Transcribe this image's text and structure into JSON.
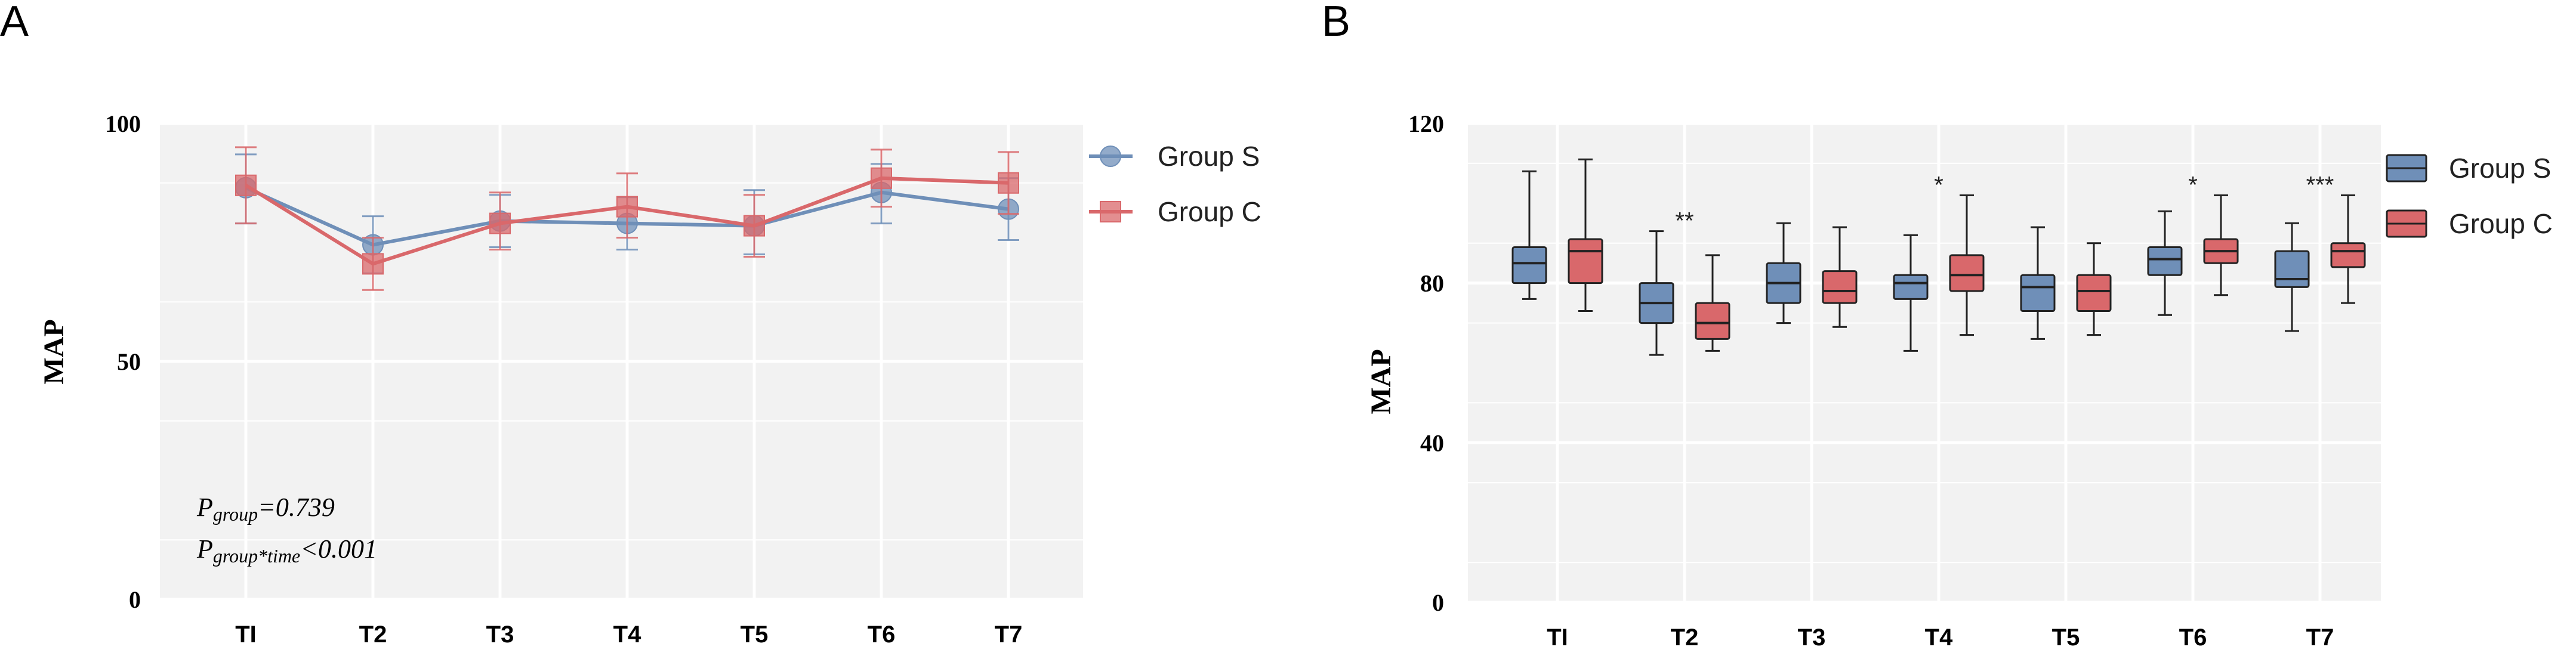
{
  "chart_data": [
    {
      "panel": "A",
      "type": "line",
      "title": "",
      "xlabel": "",
      "ylabel": "MAP",
      "categories": [
        "TI",
        "T2",
        "T3",
        "T4",
        "T5",
        "T6",
        "T7"
      ],
      "ylim": [
        0,
        100
      ],
      "yticks": [
        0,
        50,
        100
      ],
      "grid": true,
      "legend_position": "top-right",
      "series": [
        {
          "name": "Group S",
          "marker": "circle",
          "color": "#6f8fb8",
          "values": [
            86.5,
            74.5,
            79.5,
            79,
            78.5,
            85.5,
            82
          ],
          "err_low": [
            79,
            68.5,
            74,
            73.5,
            72.5,
            79,
            75.5
          ],
          "err_high": [
            93.5,
            80.5,
            85,
            84.5,
            86,
            91.5,
            88.5
          ]
        },
        {
          "name": "Group C",
          "marker": "square",
          "color": "#d9686b",
          "values": [
            87,
            70.5,
            79,
            82.5,
            78.5,
            88.5,
            87.5
          ],
          "err_low": [
            79,
            65,
            73.5,
            76,
            72,
            82.5,
            81
          ],
          "err_high": [
            95,
            76,
            85.5,
            89.5,
            85,
            94.5,
            94
          ]
        }
      ],
      "annotations": [
        {
          "main": "P",
          "sub": "group",
          "rest": "=0.739"
        },
        {
          "main": "P",
          "sub": "group*time",
          "rest": "<0.001"
        }
      ]
    },
    {
      "panel": "B",
      "type": "box",
      "title": "",
      "xlabel": "",
      "ylabel": "MAP",
      "categories": [
        "TI",
        "T2",
        "T3",
        "T4",
        "T5",
        "T6",
        "T7"
      ],
      "ylim": [
        0,
        120
      ],
      "yticks": [
        0,
        40,
        80,
        120
      ],
      "grid": true,
      "legend_position": "top-right",
      "significance": [
        "",
        "**",
        "",
        "*",
        "",
        "*",
        "***"
      ],
      "series": [
        {
          "name": "Group S",
          "color": "#6f8fb8",
          "boxes": [
            {
              "min": 76,
              "q1": 80,
              "median": 85,
              "q3": 89,
              "max": 108
            },
            {
              "min": 62,
              "q1": 70,
              "median": 75,
              "q3": 80,
              "max": 93
            },
            {
              "min": 70,
              "q1": 75,
              "median": 80,
              "q3": 85,
              "max": 95
            },
            {
              "min": 63,
              "q1": 76,
              "median": 80,
              "q3": 82,
              "max": 92
            },
            {
              "min": 66,
              "q1": 73,
              "median": 79,
              "q3": 82,
              "max": 94
            },
            {
              "min": 72,
              "q1": 82,
              "median": 86,
              "q3": 89,
              "max": 98
            },
            {
              "min": 68,
              "q1": 79,
              "median": 81,
              "q3": 88,
              "max": 95
            }
          ]
        },
        {
          "name": "Group C",
          "color": "#d9686b",
          "boxes": [
            {
              "min": 73,
              "q1": 80,
              "median": 88,
              "q3": 91,
              "max": 111
            },
            {
              "min": 63,
              "q1": 66,
              "median": 70,
              "q3": 75,
              "max": 87
            },
            {
              "min": 69,
              "q1": 75,
              "median": 78,
              "q3": 83,
              "max": 94
            },
            {
              "min": 67,
              "q1": 78,
              "median": 82,
              "q3": 87,
              "max": 102
            },
            {
              "min": 67,
              "q1": 73,
              "median": 78,
              "q3": 82,
              "max": 90
            },
            {
              "min": 77,
              "q1": 85,
              "median": 88,
              "q3": 91,
              "max": 102
            },
            {
              "min": 75,
              "q1": 84,
              "median": 88,
              "q3": 90,
              "max": 102
            }
          ]
        }
      ]
    }
  ]
}
